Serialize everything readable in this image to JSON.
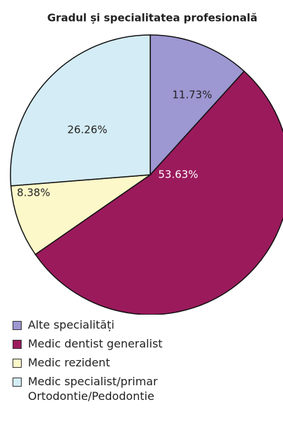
{
  "chart_data": {
    "type": "pie",
    "title": "Gradul și specialitatea profesională",
    "categories": [
      "Alte specialități",
      "Medic dentist generalist",
      "Medic rezident",
      "Medic specialist/primar Ortodontie/Pedodontie"
    ],
    "values": [
      11.73,
      53.63,
      8.38,
      26.26
    ],
    "value_labels": [
      "11.73%",
      "53.63%",
      "8.38%",
      "26.26%"
    ],
    "colors": [
      "#9d97d2",
      "#9b1a5c",
      "#fdf8c9",
      "#d4ecf5"
    ]
  }
}
